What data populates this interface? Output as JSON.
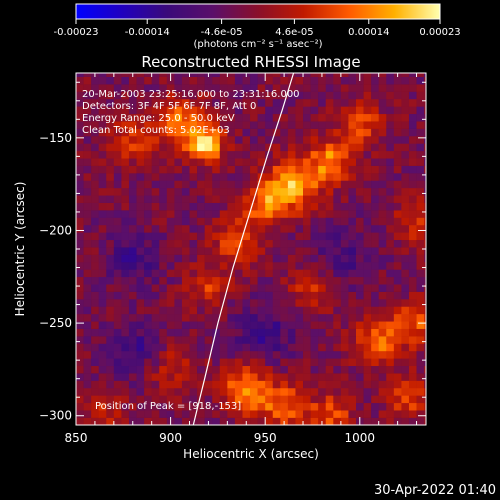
{
  "colorbar": {
    "tick_labels": [
      "-0.00023",
      "-0.00014",
      "-4.6e-05",
      "4.6e-05",
      "0.00014",
      "0.00023"
    ],
    "tick_values": [
      -0.00023,
      -0.00014,
      -4.6e-05,
      4.6e-05,
      0.00014,
      0.00023
    ],
    "range": [
      -0.00023,
      0.00023
    ],
    "unit_label": "(photons cm⁻² s⁻¹ asec⁻²)",
    "colors": [
      "#0000ff",
      "#2000c0",
      "#3a0a7a",
      "#5a0f6a",
      "#8a0f2a",
      "#c01a00",
      "#ff5a00",
      "#ffb000",
      "#ffffb0"
    ]
  },
  "chart_data": {
    "type": "heatmap",
    "title": "Reconstructed RHESSI Image",
    "xlabel": "Heliocentric X (arcsec)",
    "ylabel": "Heliocentric Y (arcsec)",
    "xlim": [
      850,
      1035
    ],
    "ylim": [
      -305,
      -115
    ],
    "x_ticks": [
      850,
      900,
      950,
      1000
    ],
    "y_ticks": [
      -150,
      -200,
      -250,
      -300
    ],
    "annotations": [
      "20-Mar-2003 23:25:16.000 to 23:31:16.000",
      "Detectors: 3F 4F 5F 6F 7F 8F, Att 0",
      "Energy Range: 25.0 - 50.0 keV",
      "Clean     Total counts: 5.02E+03"
    ],
    "peak_label": "Position of Peak = [918,-153]",
    "peak": [
      918,
      -153
    ],
    "limb_points": [
      [
        912,
        -305
      ],
      [
        918,
        -280
      ],
      [
        925,
        -250
      ],
      [
        933,
        -220
      ],
      [
        942,
        -190
      ],
      [
        951,
        -160
      ],
      [
        959,
        -135
      ],
      [
        965,
        -115
      ]
    ],
    "blobs": [
      {
        "x": 918,
        "y": -153,
        "amp": 1.0,
        "s": 7
      },
      {
        "x": 905,
        "y": -140,
        "amp": 0.6,
        "s": 9
      },
      {
        "x": 965,
        "y": -175,
        "amp": 0.85,
        "s": 10
      },
      {
        "x": 985,
        "y": -162,
        "amp": 0.7,
        "s": 8
      },
      {
        "x": 1000,
        "y": -142,
        "amp": 0.55,
        "s": 8
      },
      {
        "x": 950,
        "y": -185,
        "amp": 0.6,
        "s": 8
      },
      {
        "x": 880,
        "y": -150,
        "amp": 0.45,
        "s": 9
      },
      {
        "x": 935,
        "y": -205,
        "amp": 0.5,
        "s": 9
      },
      {
        "x": 920,
        "y": -230,
        "amp": 0.45,
        "s": 8
      },
      {
        "x": 900,
        "y": -275,
        "amp": 0.35,
        "s": 9
      },
      {
        "x": 940,
        "y": -285,
        "amp": 0.75,
        "s": 9
      },
      {
        "x": 960,
        "y": -295,
        "amp": 0.6,
        "s": 9
      },
      {
        "x": 985,
        "y": -300,
        "amp": 0.55,
        "s": 8
      },
      {
        "x": 1010,
        "y": -260,
        "amp": 0.65,
        "s": 9
      },
      {
        "x": 1030,
        "y": -250,
        "amp": 0.55,
        "s": 8
      },
      {
        "x": 1025,
        "y": -290,
        "amp": 0.5,
        "s": 8
      },
      {
        "x": 975,
        "y": -230,
        "amp": 0.4,
        "s": 9
      },
      {
        "x": 1030,
        "y": -195,
        "amp": 0.45,
        "s": 8
      },
      {
        "x": 865,
        "y": -300,
        "amp": 0.35,
        "s": 8
      },
      {
        "x": 880,
        "y": -215,
        "amp": -0.35,
        "s": 10
      },
      {
        "x": 990,
        "y": -215,
        "amp": -0.3,
        "s": 12
      },
      {
        "x": 950,
        "y": -255,
        "amp": -0.35,
        "s": 12
      },
      {
        "x": 880,
        "y": -265,
        "amp": -0.4,
        "s": 10
      }
    ]
  },
  "timestamp": "30-Apr-2022 01:40"
}
